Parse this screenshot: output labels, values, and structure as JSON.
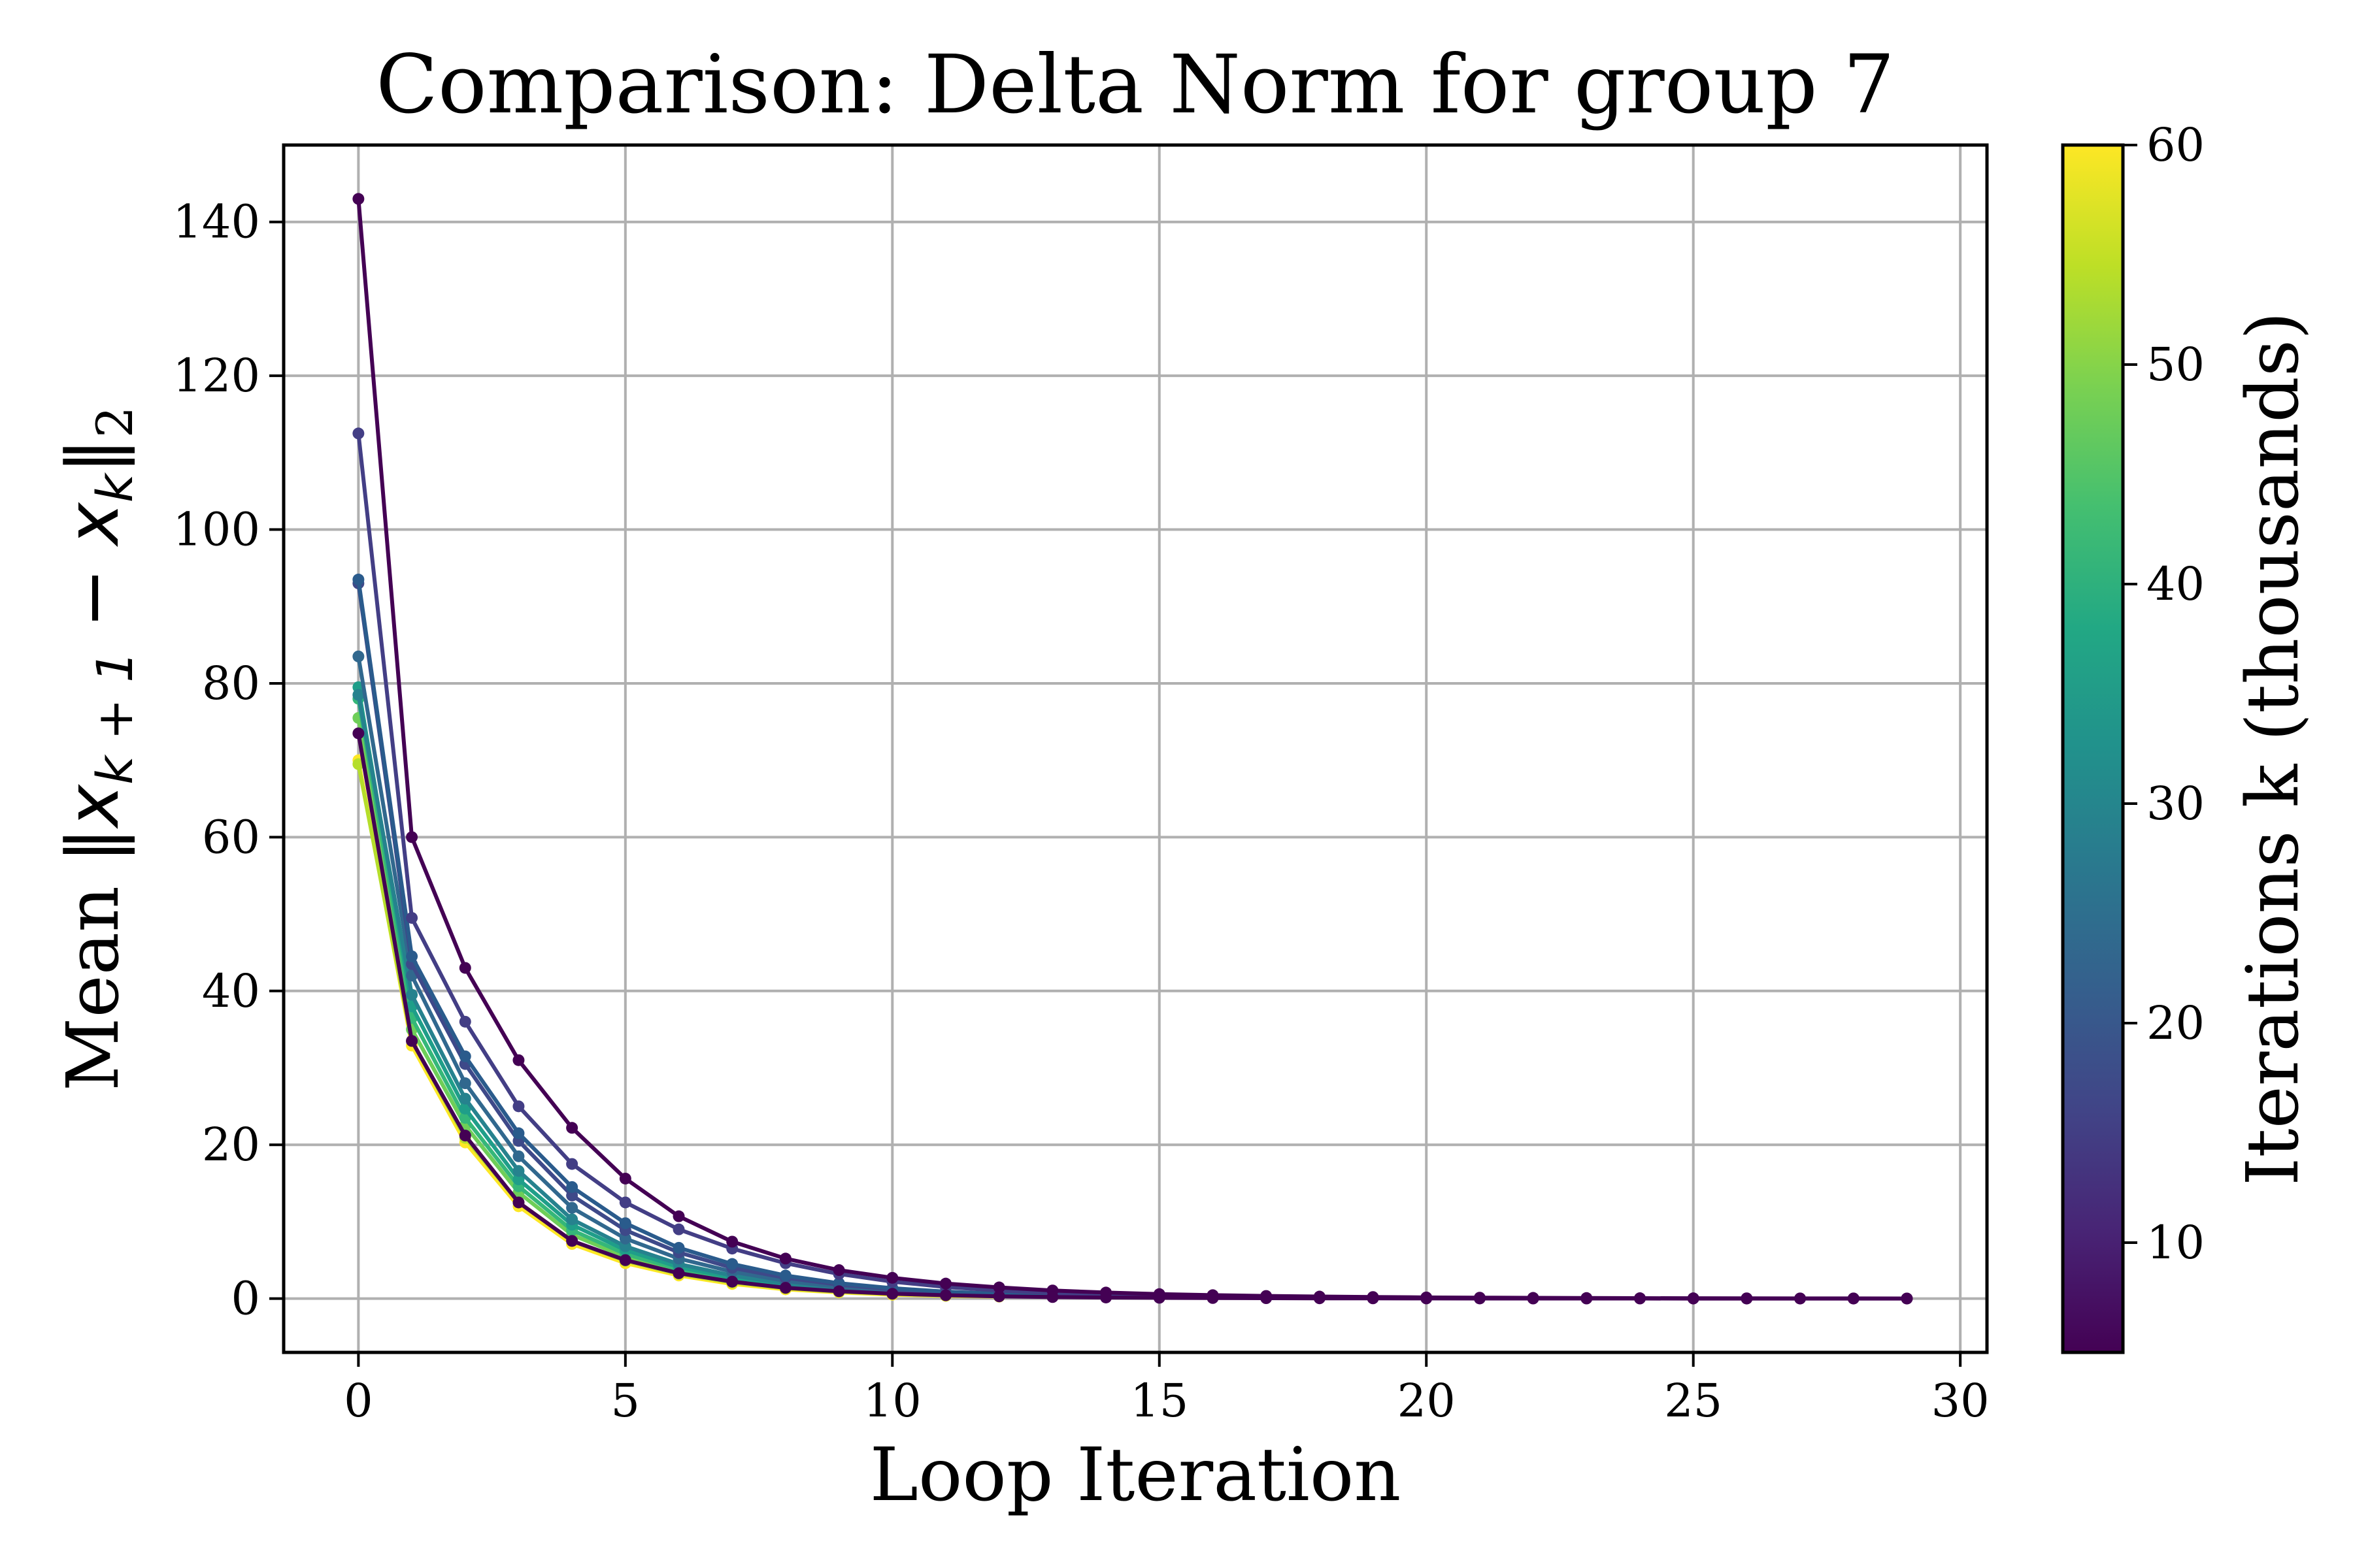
{
  "chart_data": {
    "type": "line",
    "title": "Comparison: Delta Norm for group 7",
    "xlabel": "Loop Iteration",
    "ylabel_prefix": "Mean ",
    "ylabel_norm": "‖x",
    "ylabel_sub1": "k + 1",
    "ylabel_minus": " − x",
    "ylabel_sub2": "k",
    "ylabel_close": "‖",
    "ylabel_sub3": "2",
    "xlim": [
      -1.4,
      30.5
    ],
    "ylim": [
      -7,
      150
    ],
    "xticks": [
      0,
      5,
      10,
      15,
      20,
      25,
      30
    ],
    "yticks": [
      0,
      20,
      40,
      60,
      80,
      100,
      120,
      140
    ],
    "grid": true,
    "colorbar": {
      "label": "Iterations k (thousands)",
      "range": [
        5,
        60
      ],
      "ticks": [
        10,
        20,
        30,
        40,
        50,
        60
      ],
      "colormap": "viridis"
    },
    "series": [
      {
        "name": "k=60",
        "k": 60,
        "color": "#fde725",
        "values": [
          70.0,
          32.9,
          20.3,
          12.0,
          7.1,
          4.6,
          3.0,
          1.9,
          1.2,
          0.8,
          0.5,
          0.35,
          0.25
        ]
      },
      {
        "name": "k=55",
        "k": 55,
        "color": "#b5de2b",
        "values": [
          69.5,
          33.5,
          20.9,
          12.5,
          7.5,
          4.9,
          3.2,
          2.1,
          1.35,
          0.9,
          0.6,
          0.4,
          0.28
        ]
      },
      {
        "name": "k=50",
        "k": 50,
        "color": "#6ece58",
        "values": [
          75.5,
          35.0,
          22.5,
          13.8,
          8.3,
          5.4,
          3.5,
          2.3,
          1.5,
          1.0,
          0.65,
          0.45,
          0.3
        ]
      },
      {
        "name": "k=45",
        "k": 45,
        "color": "#35b779",
        "values": [
          78.0,
          36.5,
          23.5,
          14.6,
          8.9,
          5.8,
          3.8,
          2.5,
          1.6,
          1.05,
          0.7,
          0.48,
          0.32
        ]
      },
      {
        "name": "k=40",
        "k": 40,
        "color": "#1f9e89",
        "values": [
          79.5,
          38.0,
          24.7,
          15.5,
          9.6,
          6.3,
          4.1,
          2.7,
          1.75,
          1.15,
          0.75,
          0.5,
          0.34
        ]
      },
      {
        "name": "k=35",
        "k": 35,
        "color": "#26828e",
        "values": [
          78.5,
          39.5,
          26.0,
          16.6,
          10.3,
          6.8,
          4.5,
          3.0,
          1.95,
          1.25,
          0.82,
          0.55,
          0.37
        ]
      },
      {
        "name": "k=30",
        "k": 30,
        "color": "#31688e",
        "values": [
          83.5,
          42.0,
          28.0,
          18.5,
          11.8,
          7.8,
          5.2,
          3.5,
          2.3,
          1.5,
          1.0,
          0.66,
          0.44,
          0.3
        ]
      },
      {
        "name": "k=25",
        "k": 25,
        "color": "#3e4989",
        "values": [
          93.0,
          43.5,
          30.5,
          20.5,
          13.4,
          8.9,
          6.0,
          4.0,
          2.7,
          1.8,
          1.2,
          0.8,
          0.55,
          0.38,
          0.26
        ]
      },
      {
        "name": "k=20",
        "k": 20,
        "color": "#2a5b8c",
        "values": [
          93.5,
          44.5,
          31.5,
          21.5,
          14.5,
          9.8,
          6.6,
          4.5,
          3.0,
          2.0,
          1.35,
          0.9,
          0.62,
          0.42,
          0.29
        ]
      },
      {
        "name": "k=15",
        "k": 15,
        "color": "#433e85",
        "values": [
          112.5,
          49.5,
          36.0,
          25.0,
          17.5,
          12.5,
          9.0,
          6.5,
          4.6,
          3.2,
          2.2,
          1.5,
          1.05,
          0.72,
          0.5,
          0.35,
          0.25
        ]
      },
      {
        "name": "k=10",
        "k": 10,
        "color": "#440154",
        "values": [
          143.0,
          60.0,
          43.0,
          31.0,
          22.2,
          15.6,
          10.7,
          7.4,
          5.2,
          3.7,
          2.7,
          1.95,
          1.45,
          1.05,
          0.78,
          0.58,
          0.44,
          0.34,
          0.26,
          0.2,
          0.15,
          0.12,
          0.09,
          0.07,
          0.05,
          0.04,
          0.03,
          0.02,
          0.02,
          0.01
        ]
      },
      {
        "name": "k=5",
        "k": 5,
        "color": "#440154",
        "values": [
          73.5,
          33.5,
          21.2,
          12.5,
          7.5,
          5.0,
          3.3,
          2.2,
          1.4,
          0.95,
          0.63,
          0.43,
          0.29,
          0.2,
          0.14,
          0.1,
          0.07,
          0.05,
          0.035,
          0.025,
          0.018,
          0.013,
          0.009,
          0.006,
          0.004,
          0.003,
          0.002,
          0.002,
          0.001,
          0.001
        ]
      }
    ]
  }
}
